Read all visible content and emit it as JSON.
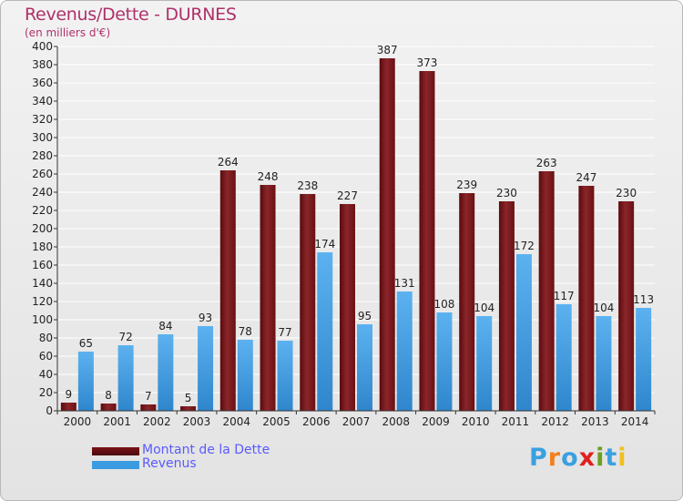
{
  "header": {
    "title": "Revenus/Dette - DURNES",
    "subtitle": "(en milliers d'€)"
  },
  "legend": {
    "debt_label": "Montant de la Dette",
    "revenue_label": "Revenus"
  },
  "logo": {
    "letters": [
      "P",
      "r",
      "o",
      "x",
      "i",
      "t",
      "i"
    ],
    "colors": [
      "#3aa0e0",
      "#f08020",
      "#3aa0e0",
      "#e02020",
      "#6aa020",
      "#3aa0e0",
      "#f0c020"
    ]
  },
  "colors": {
    "debt": "#7a1418",
    "revenue": "#3c9be0",
    "title": "#b0306a",
    "legend_text": "#5a5aff"
  },
  "chart_data": {
    "type": "bar",
    "categories": [
      "2000",
      "2001",
      "2002",
      "2003",
      "2004",
      "2005",
      "2006",
      "2007",
      "2008",
      "2009",
      "2010",
      "2011",
      "2012",
      "2013",
      "2014"
    ],
    "series": [
      {
        "name": "Montant de la Dette",
        "values": [
          9,
          8,
          7,
          5,
          264,
          248,
          238,
          227,
          387,
          373,
          239,
          230,
          263,
          247,
          230
        ]
      },
      {
        "name": "Revenus",
        "values": [
          65,
          72,
          84,
          93,
          78,
          77,
          174,
          95,
          131,
          108,
          104,
          172,
          117,
          104,
          113
        ]
      }
    ],
    "title": "Revenus/Dette - DURNES",
    "ylabel": "(en milliers d'€)",
    "ylim": [
      0,
      400
    ],
    "ytick_step": 20,
    "grid": true
  }
}
